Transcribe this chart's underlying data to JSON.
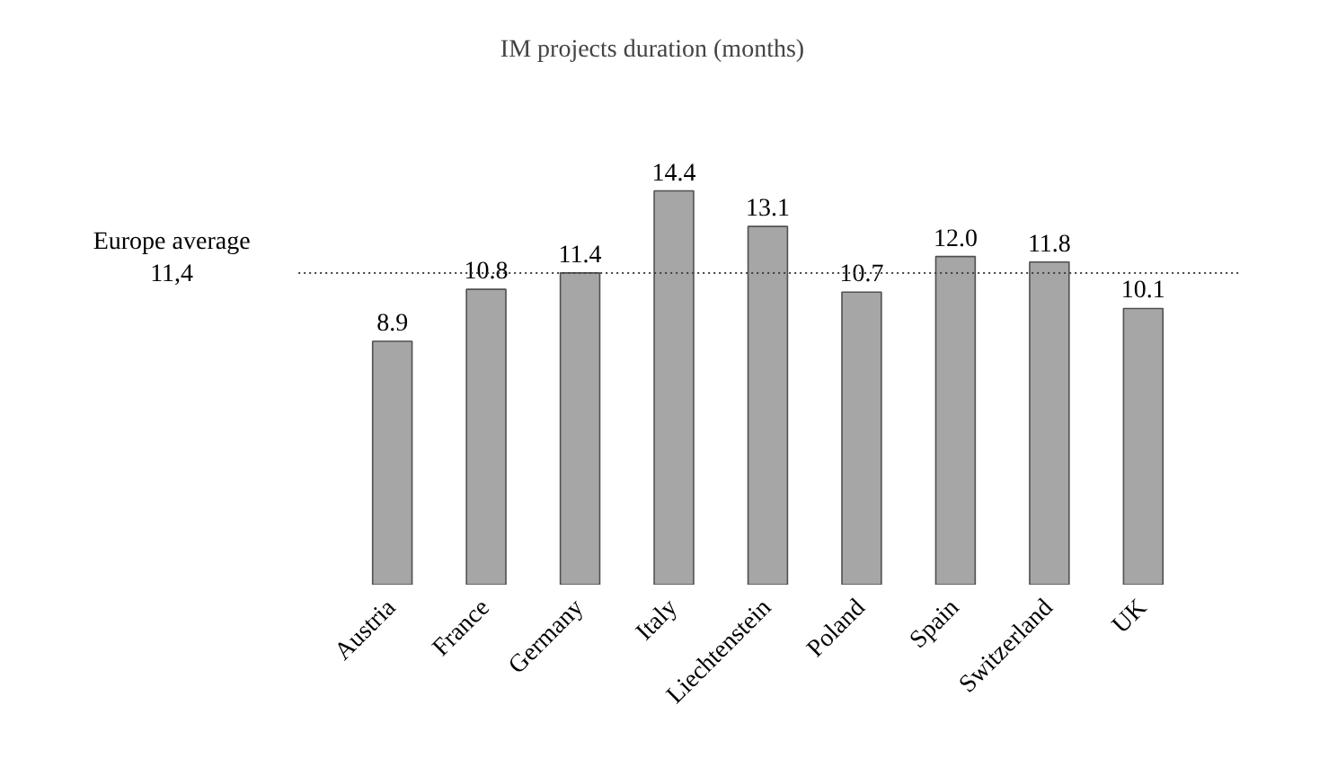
{
  "chart_data": {
    "type": "bar",
    "title": "IM projects duration (months)",
    "categories": [
      "Austria",
      "France",
      "Germany",
      "Italy",
      "Liechtenstein",
      "Poland",
      "Spain",
      "Switzerland",
      "UK"
    ],
    "values": [
      8.9,
      10.8,
      11.4,
      14.4,
      13.1,
      10.7,
      12.0,
      11.8,
      10.1
    ],
    "color": "#a6a6a6",
    "value_labels": [
      "8.9",
      "10.8",
      "11.4",
      "14.4",
      "13.1",
      "10.7",
      "12.0",
      "11.8",
      "10.1"
    ],
    "grid": false,
    "tick_labels": "x",
    "ref_lines": [
      {
        "axis": "y",
        "value": 11.4,
        "label": "Europe average\n11,4",
        "color": "#404040",
        "line_style": "dotted"
      }
    ]
  }
}
